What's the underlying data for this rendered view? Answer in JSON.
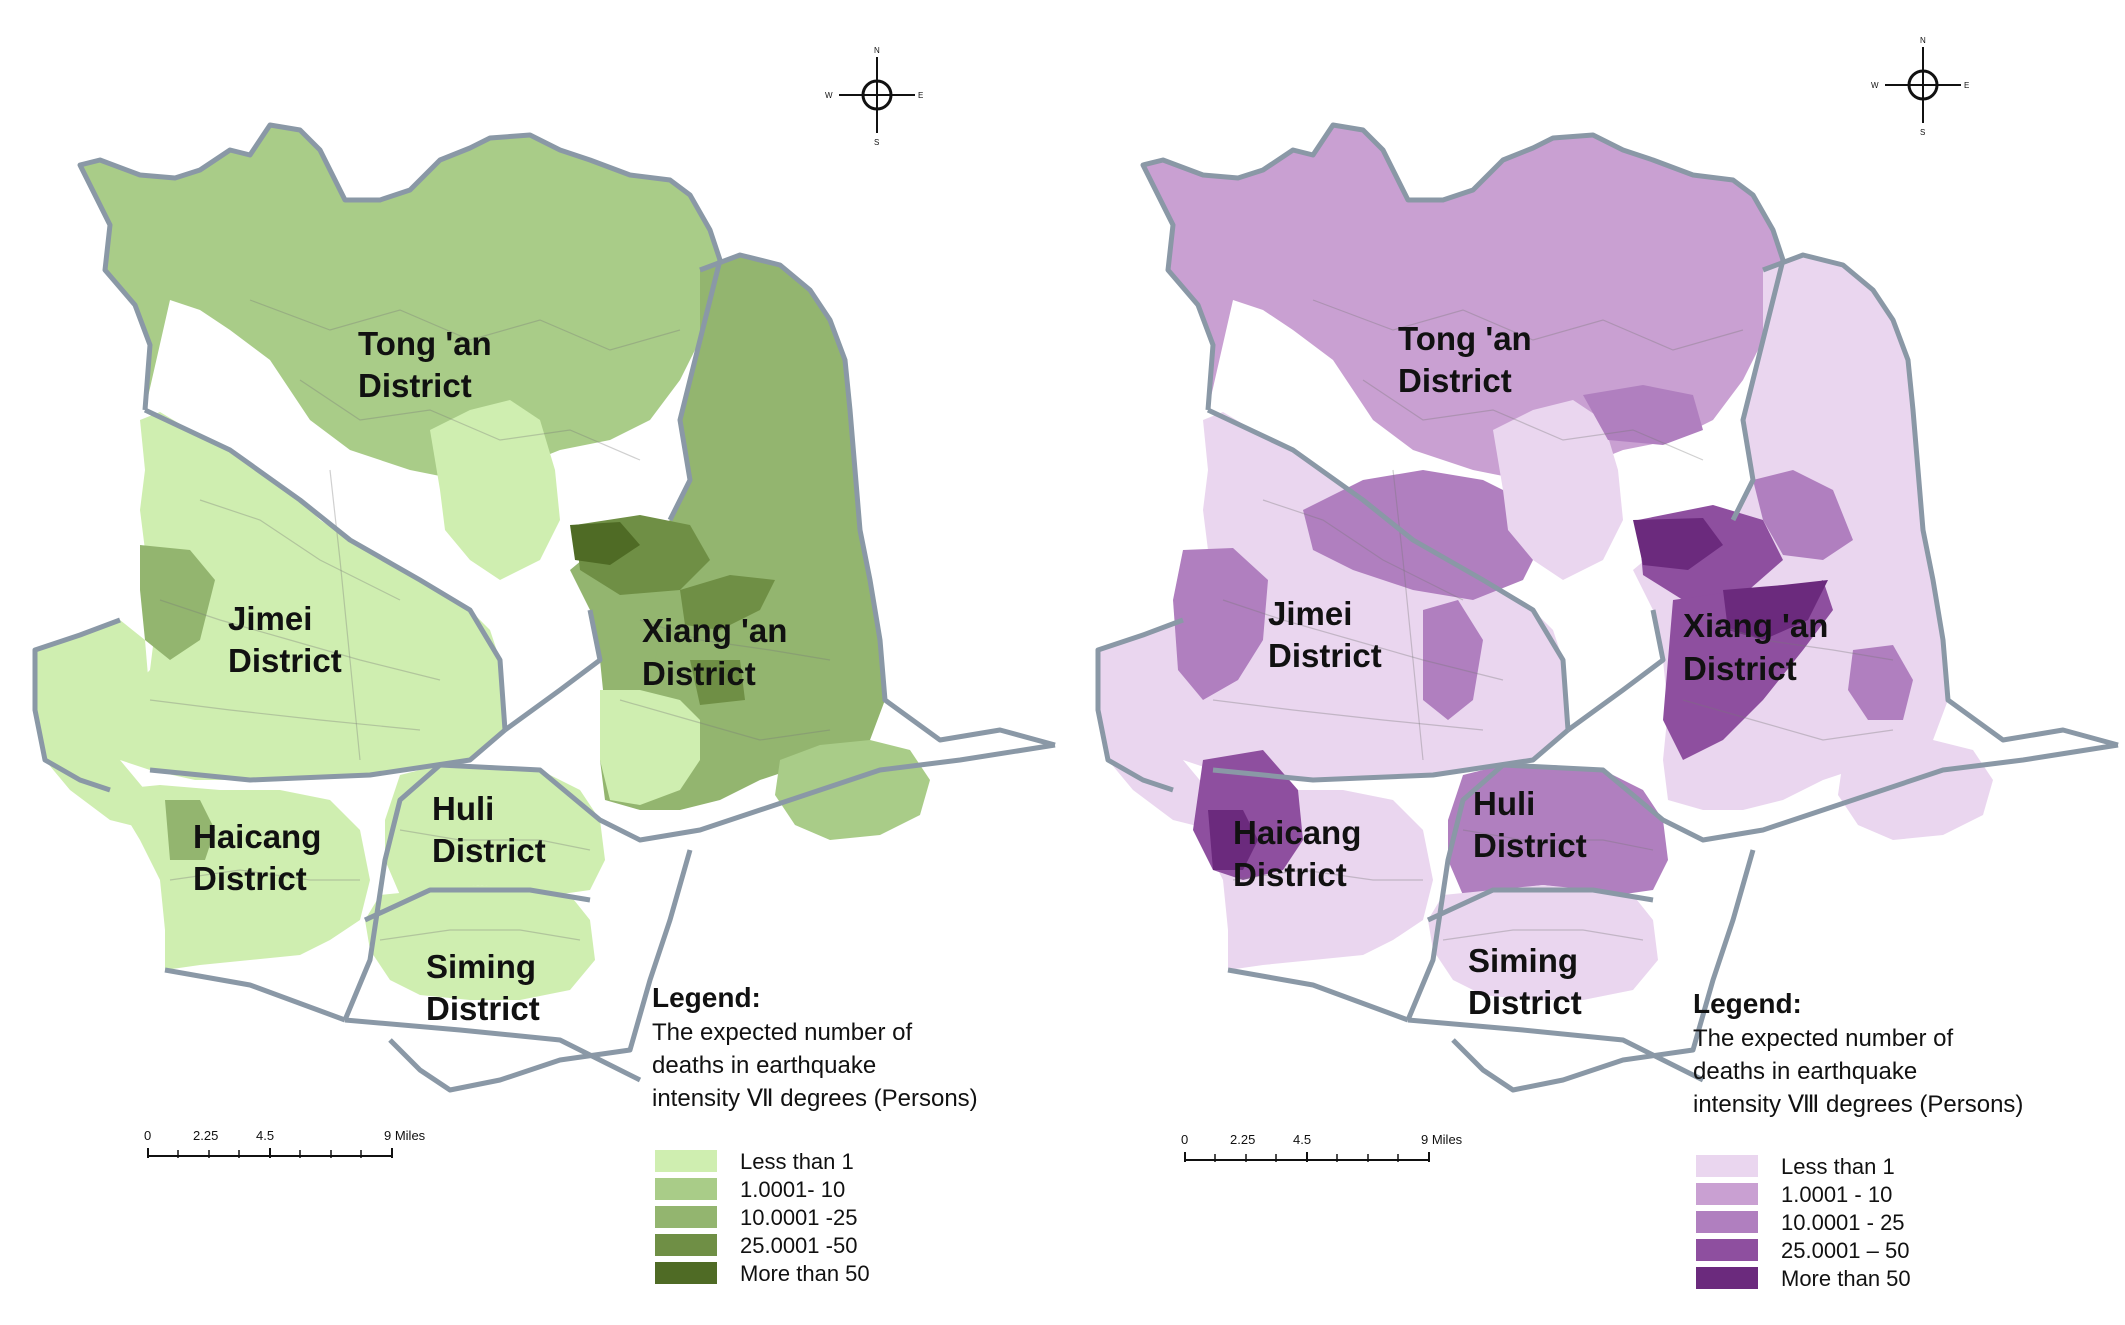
{
  "maps": [
    {
      "id": "left",
      "districts": {
        "tongan": [
          "Tong 'an",
          "District"
        ],
        "jimei": [
          "Jimei",
          "District"
        ],
        "xiangan": [
          "Xiang 'an",
          "District"
        ],
        "haicang": [
          "Haicang",
          "District"
        ],
        "huli": [
          "Huli",
          "District"
        ],
        "siming": [
          "Siming",
          "District"
        ]
      },
      "legend": {
        "title": "Legend:",
        "description": [
          "The expected number of",
          "deaths in earthquake",
          "intensity Ⅶ degrees (Persons)"
        ],
        "classes": [
          "Less than 1",
          "1.0001- 10",
          "10.0001 -25",
          "25.0001 -50",
          "More than 50"
        ],
        "colors": [
          "#cfeeb0",
          "#a9cc88",
          "#93b56f",
          "#6f8f45",
          "#4f6b25"
        ]
      },
      "scale": {
        "labels": [
          "0",
          "2.25",
          "4.5",
          "9 Miles"
        ]
      },
      "compass": {
        "n": "N",
        "s": "S",
        "e": "E",
        "w": "W"
      }
    },
    {
      "id": "right",
      "districts": {
        "tongan": [
          "Tong 'an",
          "District"
        ],
        "jimei": [
          "Jimei",
          "District"
        ],
        "xiangan": [
          "Xiang 'an",
          "District"
        ],
        "haicang": [
          "Haicang",
          "District"
        ],
        "huli": [
          "Huli",
          "District"
        ],
        "siming": [
          "Siming",
          "District"
        ]
      },
      "legend": {
        "title": "Legend:",
        "description": [
          "The expected number of",
          "deaths in earthquake",
          "intensity Ⅷ degrees (Persons)"
        ],
        "classes": [
          "Less than 1",
          "1.0001 - 10",
          "10.0001 - 25",
          "25.0001 – 50",
          "More than 50"
        ],
        "colors": [
          "#ead6ef",
          "#c9a0d2",
          "#b07fbf",
          "#8e4f9f",
          "#6b2a7d"
        ]
      },
      "scale": {
        "labels": [
          "0",
          "2.25",
          "4.5",
          "9 Miles"
        ]
      },
      "compass": {
        "n": "N",
        "s": "S",
        "e": "E",
        "w": "W"
      }
    }
  ]
}
